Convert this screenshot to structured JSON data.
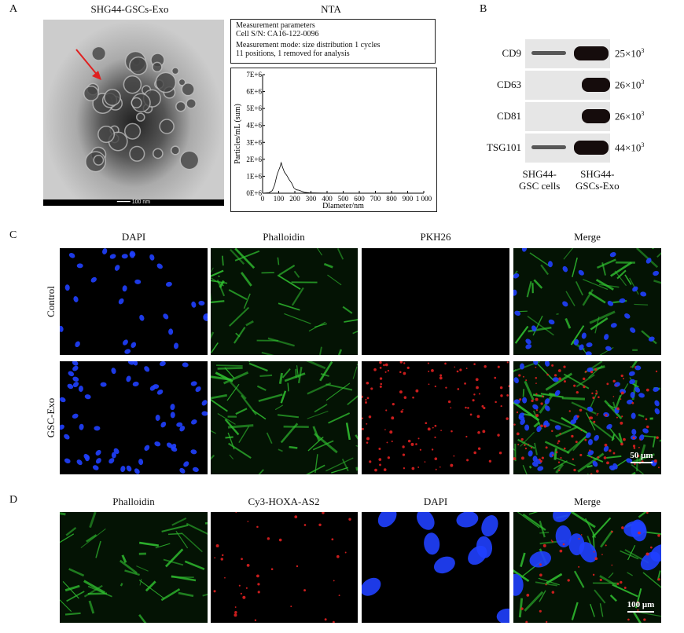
{
  "panels": {
    "a": "A",
    "b": "B",
    "c": "C",
    "d": "D"
  },
  "panel_a": {
    "title": "SHG44-GSCs-Exo",
    "scale_bar": "100 nm",
    "arrow_color": "#e02020"
  },
  "nta": {
    "title": "NTA",
    "params": [
      "Measurement parameters",
      "Cell S/N: CA16-122-0096",
      "Measurement mode: size distribution 1 cycles",
      "11 positions, 1 removed for analysis"
    ]
  },
  "chart_data": {
    "type": "line",
    "xlabel": "Dlameter/nm",
    "ylabel": "Particles/mL (sum)",
    "xlim": [
      0,
      1000
    ],
    "ylim": [
      0,
      7000000
    ],
    "xticks": [
      "0",
      "100",
      "200",
      "300",
      "400",
      "500",
      "600",
      "700",
      "800",
      "900",
      "1 000"
    ],
    "yticks": [
      "0E+6",
      "1E+6",
      "2E+6",
      "3E+6",
      "4E+6",
      "5E+6",
      "6E+6",
      "7E+6"
    ],
    "x": [
      0,
      40,
      60,
      75,
      90,
      100,
      110,
      115,
      125,
      135,
      150,
      165,
      180,
      195,
      210,
      225,
      240,
      260,
      290,
      350,
      450,
      1000
    ],
    "y": [
      0,
      30000,
      150000,
      500000,
      1100000,
      1350000,
      1600000,
      1800000,
      1500000,
      1250000,
      1050000,
      800000,
      600000,
      300000,
      200000,
      180000,
      120000,
      50000,
      20000,
      10000,
      0,
      0
    ]
  },
  "panel_b": {
    "rows": [
      {
        "label": "CD9",
        "mw": "25×10",
        "exp": "3"
      },
      {
        "label": "CD63",
        "mw": "26×10",
        "exp": "3"
      },
      {
        "label": "CD81",
        "mw": "26×10",
        "exp": "3"
      },
      {
        "label": "TSG101",
        "mw": "44×10",
        "exp": "3"
      }
    ],
    "lanes": [
      [
        "SHG44-",
        "GSC cells"
      ],
      [
        "SHG44-",
        "GSCs-Exo"
      ]
    ]
  },
  "panel_c": {
    "columns": [
      "DAPI",
      "Phalloidin",
      "PKH26",
      "Merge"
    ],
    "rows": [
      "Control",
      "GSC-Exo"
    ],
    "scale_bar": "50 μm"
  },
  "panel_d": {
    "columns": [
      "Phalloidin",
      "Cy3-HOXA-AS2",
      "DAPI",
      "Merge"
    ],
    "scale_bar": "100 μm"
  },
  "colors": {
    "dapi": "#2040ff",
    "phalloidin": "#30c030",
    "pkh26": "#e02020"
  }
}
